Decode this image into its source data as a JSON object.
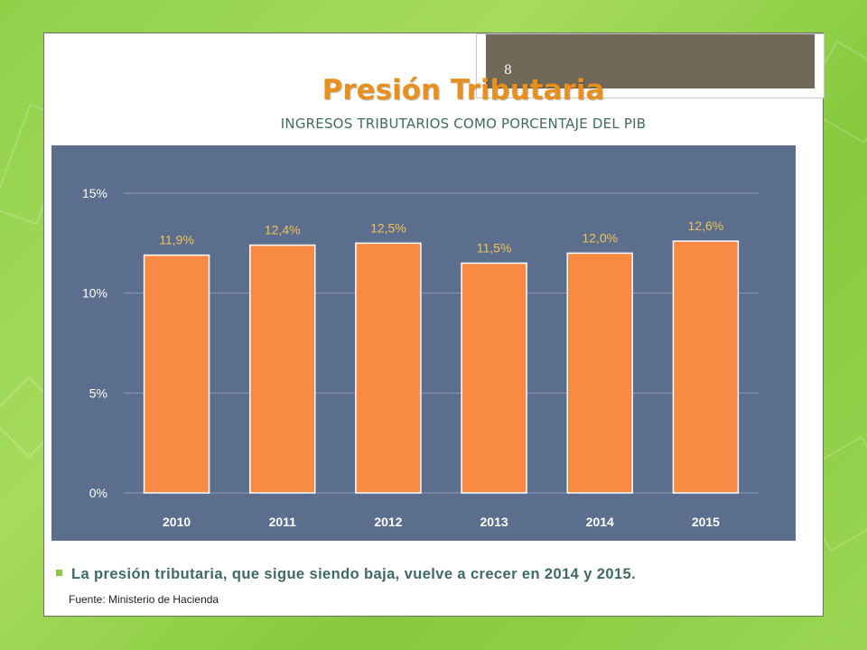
{
  "slide": {
    "page_number": "8",
    "title": "Presión Tributaria",
    "subtitle": "INGRESOS TRIBUTARIOS COMO PORCENTAJE DEL PIB",
    "bullet_text": "La presión tributaria, que sigue siendo baja, vuelve a crecer en 2014 y 2015.",
    "source": "Fuente: Ministerio de Hacienda"
  },
  "colors": {
    "bar": "#f98a43",
    "bar_label": "#f1c257",
    "chart_bg": "#5b6e8e",
    "title": "#e8901f",
    "subtitle": "#3f6b63"
  },
  "chart_data": {
    "type": "bar",
    "categories": [
      "2010",
      "2011",
      "2012",
      "2013",
      "2014",
      "2015"
    ],
    "values": [
      11.9,
      12.4,
      12.5,
      11.5,
      12.0,
      12.6
    ],
    "data_labels": [
      "11,9%",
      "12,4%",
      "12,5%",
      "11,5%",
      "12,0%",
      "12,6%"
    ],
    "ylim": [
      0,
      15
    ],
    "y_ticks": [
      0,
      5,
      10,
      15
    ],
    "y_tick_labels": [
      "0%",
      "5%",
      "10%",
      "15%"
    ],
    "xlabel": "",
    "ylabel": "",
    "grid": true
  }
}
